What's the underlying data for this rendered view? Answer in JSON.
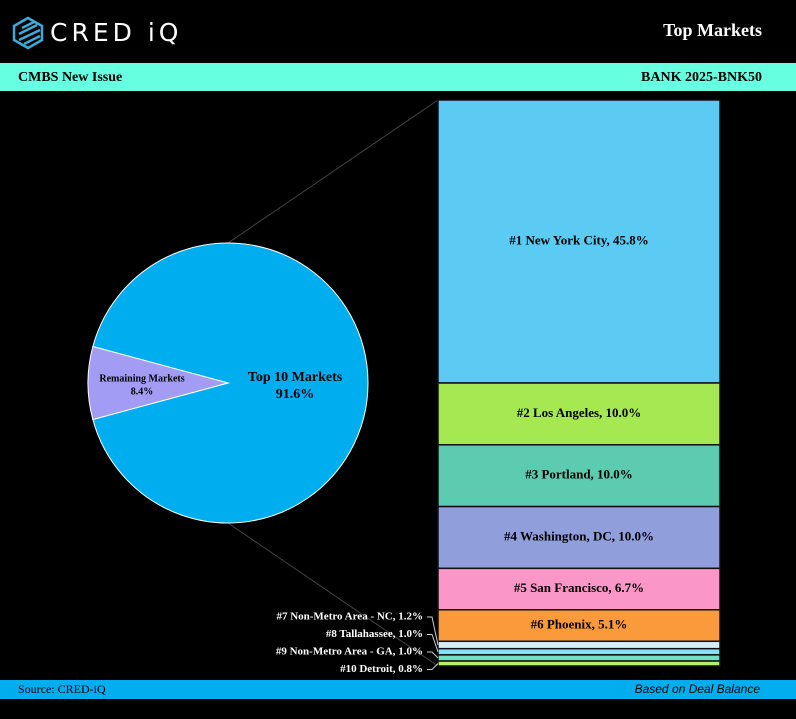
{
  "header": {
    "logo": "CRED iQ",
    "title": "Top Markets",
    "left": "CMBS New Issue",
    "right": "BANK 2025-BNK50"
  },
  "chart_data": {
    "type": "bar-of-pie",
    "pie": {
      "categories": [
        "Top 10 Markets",
        "Remaining Markets"
      ],
      "values": [
        91.6,
        8.4
      ],
      "value_labels": [
        "91.6%",
        "8.4%"
      ],
      "colors": [
        "#00aeef",
        "#a29cf4"
      ]
    },
    "bar": {
      "labels": [
        "#1 New York City, 45.8%",
        "#2 Los Angeles, 10.0%",
        "#3 Portland, 10.0%",
        "#4 Washington, DC, 10.0%",
        "#5 San Francisco, 6.7%",
        "#6 Phoenix, 5.1%",
        "#7 Non-Metro Area - NC, 1.2%",
        "#8 Tallahassee, 1.0%",
        "#9 Non-Metro Area - GA, 1.0%",
        "#10 Detroit, 0.8%"
      ],
      "values": [
        45.8,
        10.0,
        10.0,
        10.0,
        6.7,
        5.1,
        1.2,
        1.0,
        1.0,
        0.8
      ],
      "colors": [
        "#5bcbf3",
        "#a6e852",
        "#5ccbb0",
        "#909fdc",
        "#fb96c8",
        "#fa9a3a",
        "#d6eef8",
        "#7fe3f5",
        "#6fe0c6",
        "#b2ef6a"
      ]
    }
  },
  "footer": {
    "source": "Source:  CRED-iQ",
    "note": "Based on Deal Balance"
  }
}
